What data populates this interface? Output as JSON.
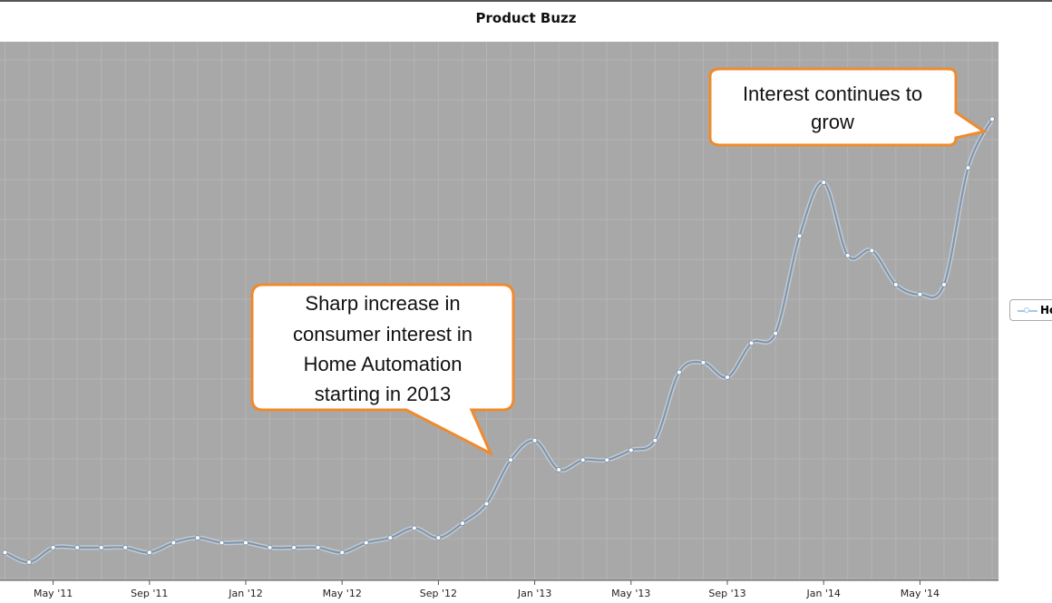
{
  "chart_data": {
    "type": "line",
    "title": "Product Buzz",
    "x_ticks": [
      "May '11",
      "Sep '11",
      "Jan '12",
      "May '12",
      "Sep '12",
      "Jan '13",
      "May '13",
      "Sep '13",
      "Jan '14",
      "May '14"
    ],
    "series": [
      {
        "name": "Ho",
        "color": "#a9c6e8",
        "line_color": "#7f93a6",
        "points": [
          [
            "2011-03",
            2
          ],
          [
            "2011-04",
            0
          ],
          [
            "2011-05",
            3
          ],
          [
            "2011-06",
            3
          ],
          [
            "2011-07",
            3
          ],
          [
            "2011-08",
            3
          ],
          [
            "2011-09",
            2
          ],
          [
            "2011-10",
            4
          ],
          [
            "2011-11",
            5
          ],
          [
            "2011-12",
            4
          ],
          [
            "2012-01",
            4
          ],
          [
            "2012-02",
            3
          ],
          [
            "2012-03",
            3
          ],
          [
            "2012-04",
            3
          ],
          [
            "2012-05",
            2
          ],
          [
            "2012-06",
            4
          ],
          [
            "2012-07",
            5
          ],
          [
            "2012-08",
            7
          ],
          [
            "2012-09",
            5
          ],
          [
            "2012-10",
            8
          ],
          [
            "2012-11",
            12
          ],
          [
            "2012-12",
            21
          ],
          [
            "2013-01",
            25
          ],
          [
            "2013-02",
            19
          ],
          [
            "2013-03",
            21
          ],
          [
            "2013-04",
            21
          ],
          [
            "2013-05",
            23
          ],
          [
            "2013-06",
            25
          ],
          [
            "2013-07",
            39
          ],
          [
            "2013-08",
            41
          ],
          [
            "2013-09",
            38
          ],
          [
            "2013-10",
            45
          ],
          [
            "2013-11",
            47
          ],
          [
            "2013-12",
            67
          ],
          [
            "2014-01",
            78
          ],
          [
            "2014-02",
            63
          ],
          [
            "2014-03",
            64
          ],
          [
            "2014-04",
            57
          ],
          [
            "2014-05",
            55
          ],
          [
            "2014-06",
            57
          ],
          [
            "2014-07",
            81
          ],
          [
            "2014-08",
            91
          ]
        ]
      }
    ],
    "y_range": [
      0,
      100
    ],
    "grid": true,
    "legend_position": "right",
    "annotations": [
      {
        "text": [
          "Interest continues to",
          "grow"
        ]
      },
      {
        "text": [
          "Sharp increase in",
          "consumer interest in",
          "Home Automation",
          "starting in 2013"
        ]
      }
    ]
  }
}
